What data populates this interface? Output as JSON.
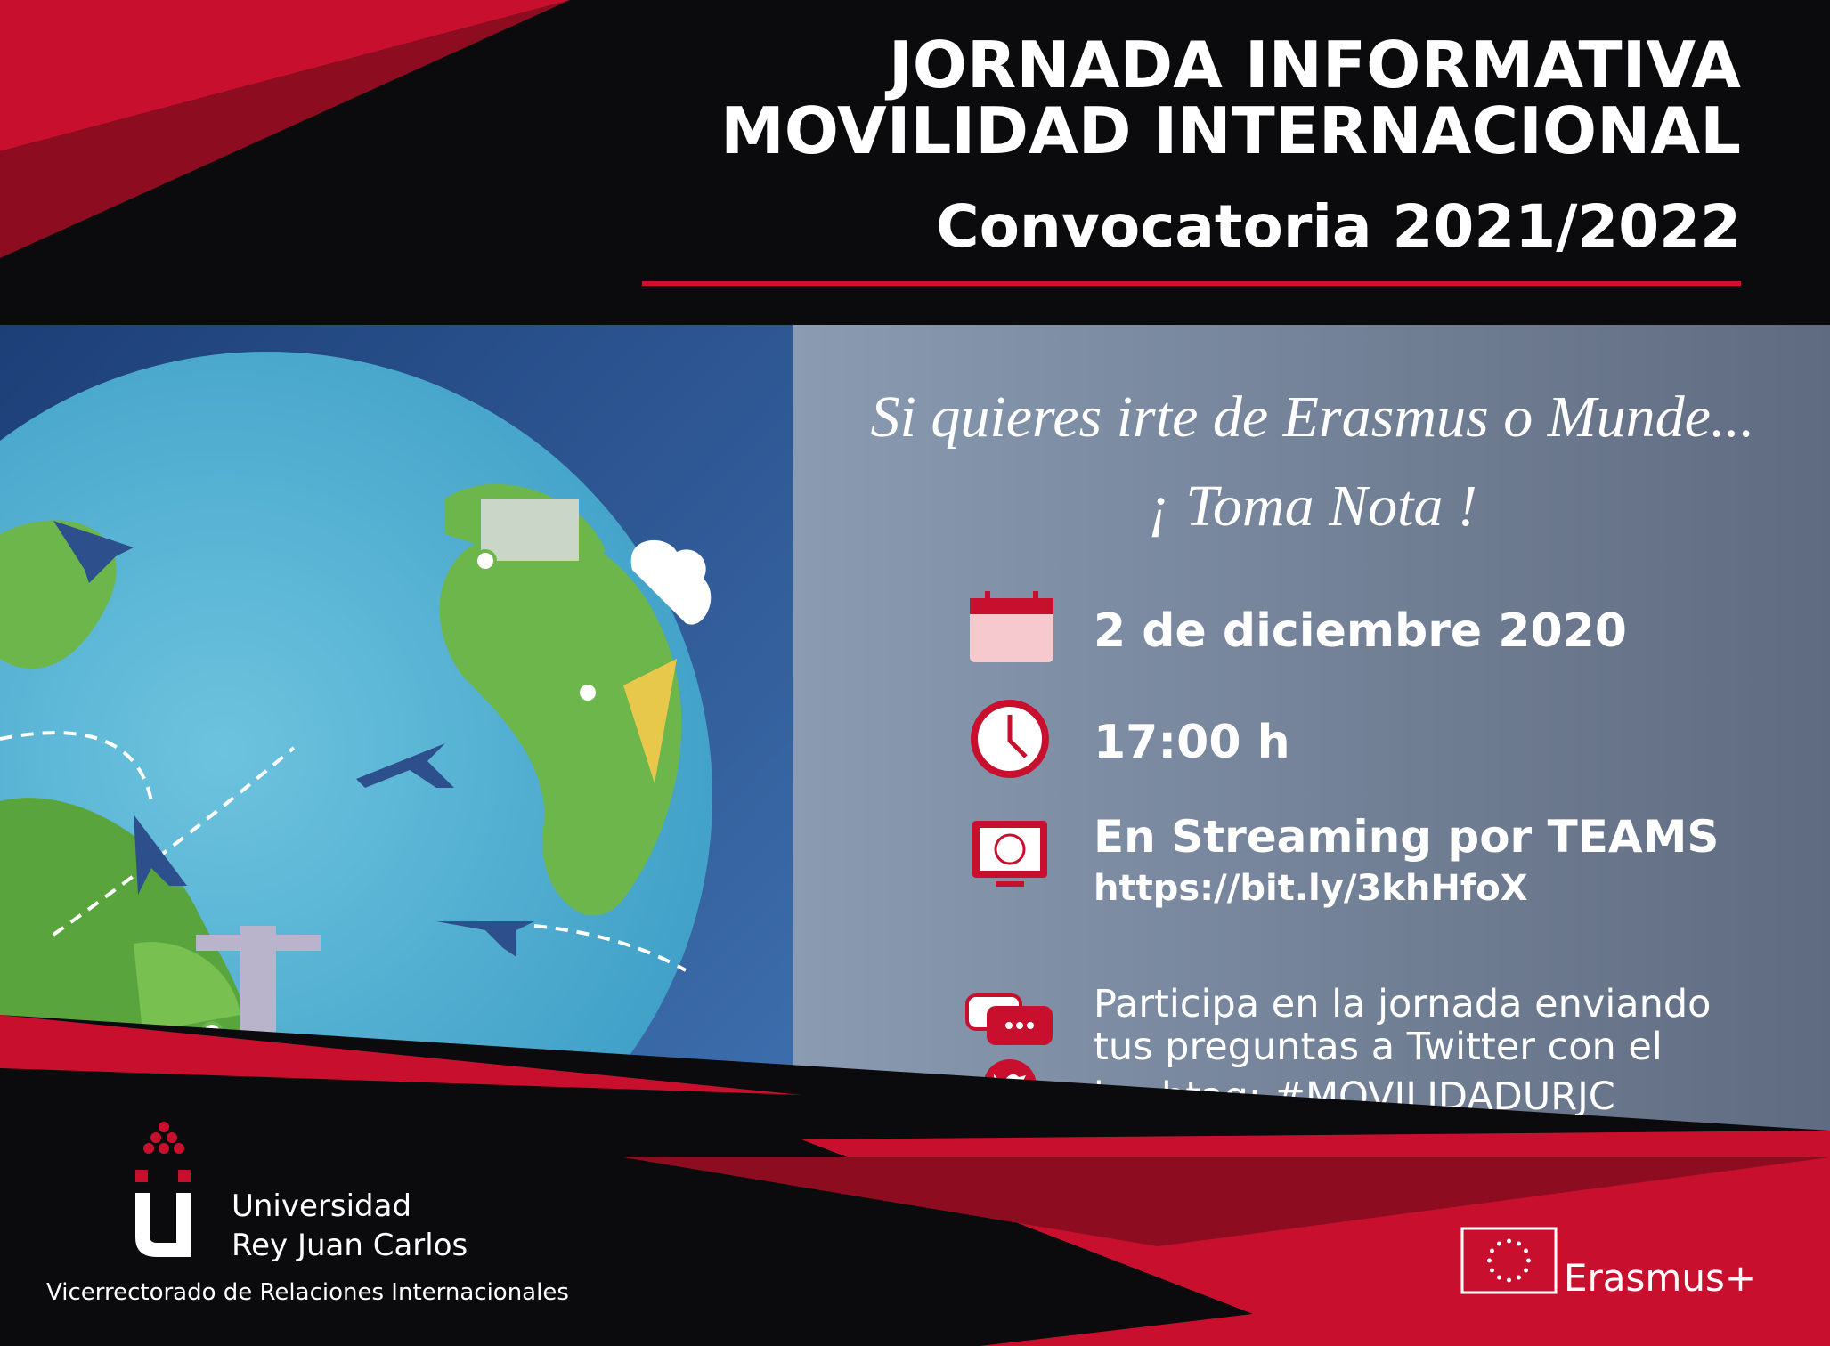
{
  "header": {
    "title_line1": "JORNADA INFORMATIVA",
    "title_line2": "MOVILIDAD INTERNACIONAL",
    "subtitle": "Convocatoria 2021/2022"
  },
  "intro": {
    "line1": "Si quieres irte de Erasmus o Munde...",
    "line2": "¡ Toma Nota !"
  },
  "details": {
    "date": "2 de diciembre 2020",
    "time": "17:00 h",
    "streaming": "En Streaming por TEAMS",
    "link": "https://bit.ly/3khHfoX",
    "participate": [
      "Participa en la jornada enviando",
      "tus preguntas a Twitter con el",
      "hashtag: #MOVILIDADURJC"
    ]
  },
  "footer": {
    "university": [
      "Universidad",
      "Rey Juan Carlos"
    ],
    "department": "Vicerrectorado de Relaciones Internacionales",
    "erasmus": "Erasmus+"
  }
}
